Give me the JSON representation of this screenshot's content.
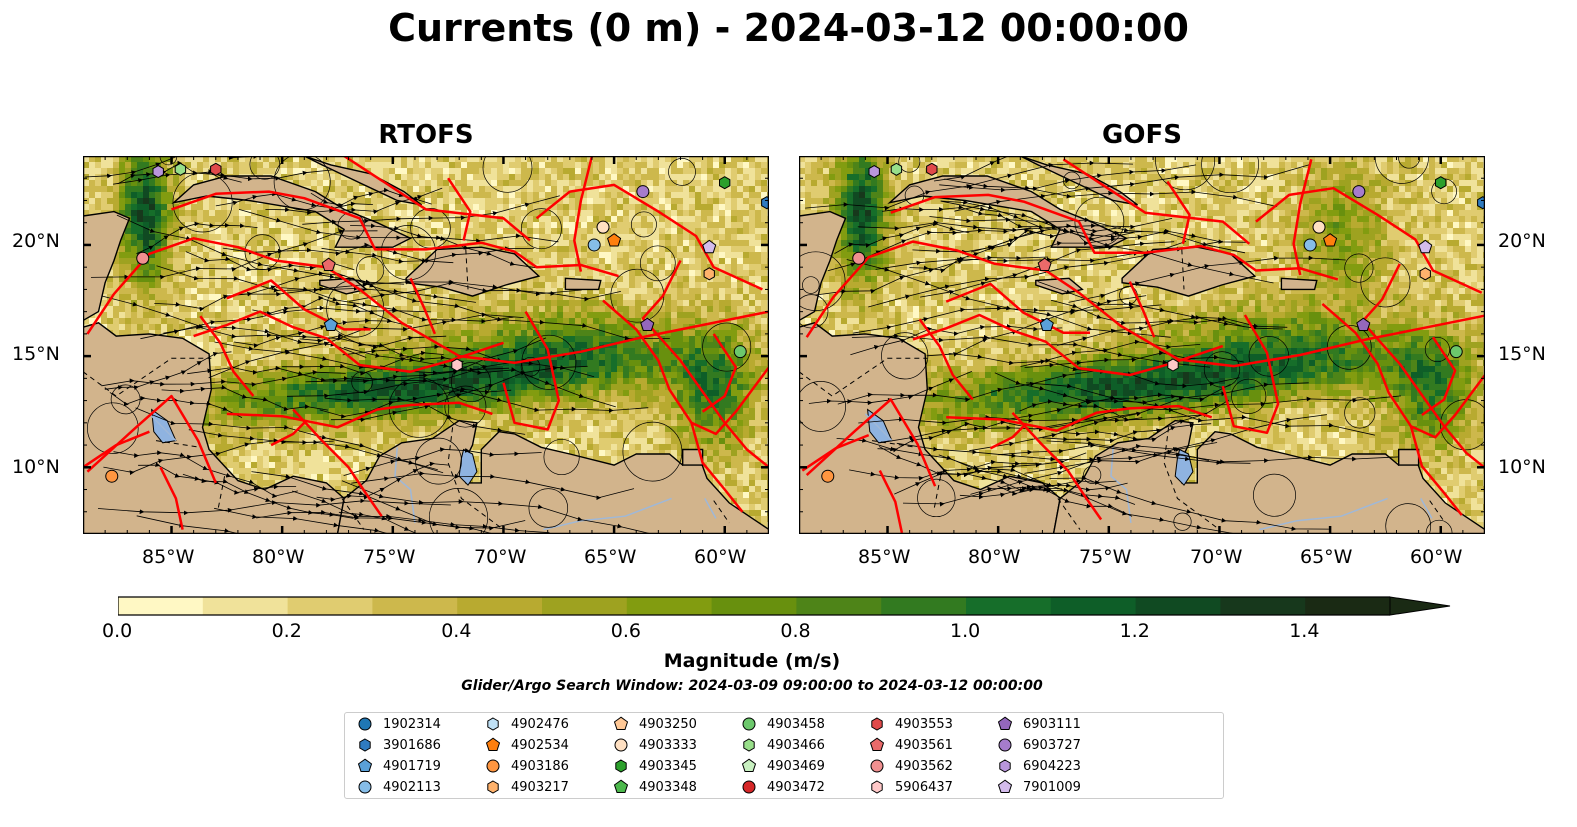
{
  "title": "Currents (0 m) - 2024-03-12 00:00:00",
  "panels": [
    {
      "title": "RTOFS"
    },
    {
      "title": "GOFS"
    }
  ],
  "x_ticks": [
    "85°W",
    "80°W",
    "75°W",
    "70°W",
    "65°W",
    "60°W"
  ],
  "y_ticks": [
    "20°N",
    "15°N",
    "10°N"
  ],
  "colorbar": {
    "label": "Magnitude (m/s)",
    "ticks": [
      "0.0",
      "0.2",
      "0.4",
      "0.6",
      "0.8",
      "1.0",
      "1.2",
      "1.4"
    ],
    "colors": [
      "#fff8c4",
      "#f0e29a",
      "#e0cc70",
      "#cdb84c",
      "#b8aa30",
      "#9ea220",
      "#829c10",
      "#68900e",
      "#4e8418",
      "#327a20",
      "#166e2a",
      "#0e5e28",
      "#104a22",
      "#17381c",
      "#1a2a14",
      "#1a2a14"
    ]
  },
  "search_window": "Glider/Argo Search Window: 2024-03-09 09:00:00 to 2024-03-12 00:00:00",
  "legend": [
    {
      "label": "1902314",
      "marker": "circle",
      "color": "#1f77b4"
    },
    {
      "label": "3901686",
      "marker": "hexagon",
      "color": "#2f7bc0"
    },
    {
      "label": "4901719",
      "marker": "pentagon",
      "color": "#5aa0d8"
    },
    {
      "label": "4902113",
      "marker": "circle",
      "color": "#86bde8"
    },
    {
      "label": "4902476",
      "marker": "hexagon",
      "color": "#bfe0f5"
    },
    {
      "label": "4902534",
      "marker": "pentagon",
      "color": "#ff7f0e"
    },
    {
      "label": "4903186",
      "marker": "circle",
      "color": "#ff9640"
    },
    {
      "label": "4903217",
      "marker": "hexagon",
      "color": "#ffb26c"
    },
    {
      "label": "4903250",
      "marker": "pentagon",
      "color": "#ffc896"
    },
    {
      "label": "4903333",
      "marker": "circle",
      "color": "#ffe0c2"
    },
    {
      "label": "4903345",
      "marker": "hexagon",
      "color": "#2ca02c"
    },
    {
      "label": "4903348",
      "marker": "pentagon",
      "color": "#4cb84c"
    },
    {
      "label": "4903458",
      "marker": "circle",
      "color": "#6cc86c"
    },
    {
      "label": "4903466",
      "marker": "hexagon",
      "color": "#98df8a"
    },
    {
      "label": "4903469",
      "marker": "pentagon",
      "color": "#c8f0c0"
    },
    {
      "label": "4903472",
      "marker": "circle",
      "color": "#d62728"
    },
    {
      "label": "4903553",
      "marker": "hexagon",
      "color": "#e04a4a"
    },
    {
      "label": "4903561",
      "marker": "pentagon",
      "color": "#ea6a6a"
    },
    {
      "label": "4903562",
      "marker": "circle",
      "color": "#f09090"
    },
    {
      "label": "5906437",
      "marker": "hexagon",
      "color": "#ffc8c8"
    },
    {
      "label": "6903111",
      "marker": "pentagon",
      "color": "#9467bd"
    },
    {
      "label": "6903727",
      "marker": "circle",
      "color": "#a67ccc"
    },
    {
      "label": "6904223",
      "marker": "hexagon",
      "color": "#b996dc"
    },
    {
      "label": "7901009",
      "marker": "pentagon",
      "color": "#d4bcec"
    }
  ],
  "chart_data": {
    "type": "heatmap",
    "variable": "Magnitude (m/s)",
    "xlim": [
      -89,
      -58
    ],
    "ylim": [
      7,
      24
    ],
    "zlim": [
      0,
      1.5
    ],
    "panels": [
      "RTOFS",
      "GOFS"
    ],
    "floats": [
      {
        "id": "6904223",
        "lon": -85.6,
        "lat": 23.3
      },
      {
        "id": "4903466",
        "lon": -84.6,
        "lat": 23.4
      },
      {
        "id": "4903553",
        "lon": -83.0,
        "lat": 23.4
      },
      {
        "id": "4903345",
        "lon": -60.0,
        "lat": 22.8
      },
      {
        "id": "6903727",
        "lon": -63.7,
        "lat": 22.4
      },
      {
        "id": "3901686",
        "lon": -58.1,
        "lat": 21.9
      },
      {
        "id": "4903333",
        "lon": -65.5,
        "lat": 20.8
      },
      {
        "id": "4902534",
        "lon": -65.0,
        "lat": 20.2
      },
      {
        "id": "4902113",
        "lon": -65.9,
        "lat": 20.0
      },
      {
        "id": "7901009",
        "lon": -60.7,
        "lat": 19.9
      },
      {
        "id": "4903562",
        "lon": -86.3,
        "lat": 19.4
      },
      {
        "id": "4903561",
        "lon": -77.9,
        "lat": 19.1
      },
      {
        "id": "4903217",
        "lon": -60.7,
        "lat": 18.7
      },
      {
        "id": "4901719",
        "lon": -77.8,
        "lat": 16.4
      },
      {
        "id": "6903111",
        "lon": -63.5,
        "lat": 16.4
      },
      {
        "id": "4903458",
        "lon": -59.3,
        "lat": 15.2
      },
      {
        "id": "5906437",
        "lon": -72.1,
        "lat": 14.6
      },
      {
        "id": "4903186",
        "lon": -87.7,
        "lat": 9.6
      }
    ]
  }
}
